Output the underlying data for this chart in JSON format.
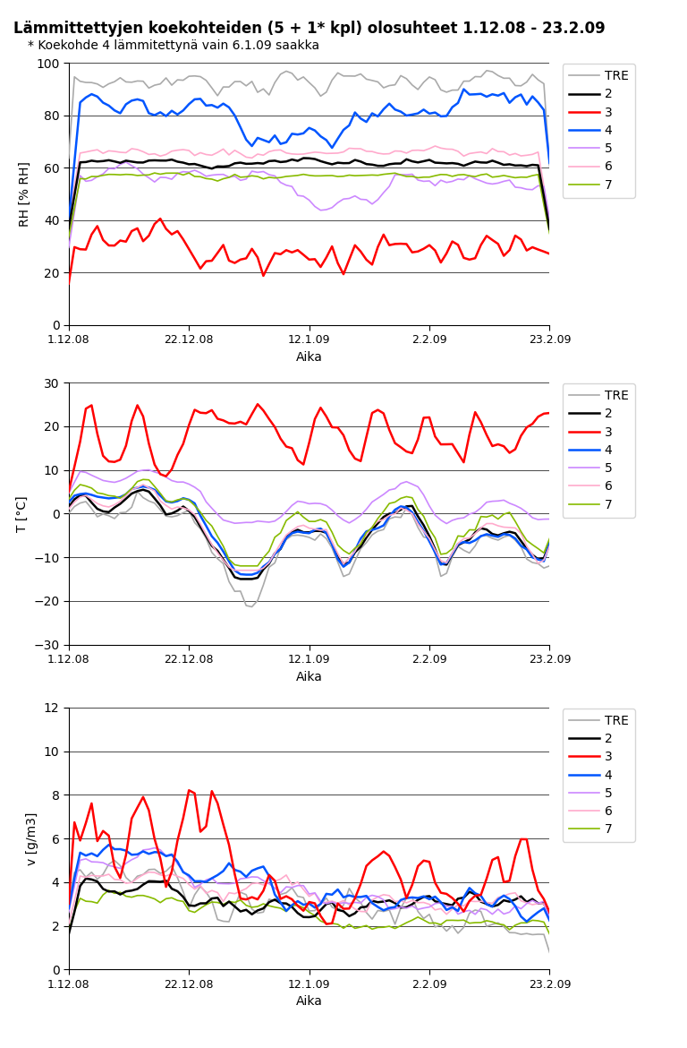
{
  "title": "Lämmittettyjen koekohteiden (5 + 1* kpl) olosuhteet 1.12.08 - 23.2.09",
  "subtitle": "* Koekohde 4 lämmitettynä vain 6.1.09 saakka",
  "xlabel": "Aika",
  "x_ticks_labels": [
    "1.12.08",
    "22.12.08",
    "12.1.09",
    "2.2.09",
    "23.2.09"
  ],
  "x_ticks_pos": [
    0,
    21,
    42,
    63,
    84
  ],
  "n_points": 85,
  "legend_labels": [
    "TRE",
    "2",
    "3",
    "4",
    "5",
    "6",
    "7"
  ],
  "colors": {
    "TRE": "#aaaaaa",
    "2": "#000000",
    "3": "#ff0000",
    "4": "#0055ff",
    "5": "#cc88ff",
    "6": "#ffaacc",
    "7": "#88bb00"
  },
  "rh_ylabel": "RH [% RH]",
  "rh_ylim": [
    0,
    100
  ],
  "rh_yticks": [
    0,
    20,
    40,
    60,
    80,
    100
  ],
  "t_ylabel": "T [°C]",
  "t_ylim": [
    -30,
    30
  ],
  "t_yticks": [
    -30,
    -20,
    -10,
    0,
    10,
    20,
    30
  ],
  "v_ylabel": "v [g/m3]",
  "v_ylim": [
    0,
    12
  ],
  "v_yticks": [
    0,
    2,
    4,
    6,
    8,
    10,
    12
  ]
}
